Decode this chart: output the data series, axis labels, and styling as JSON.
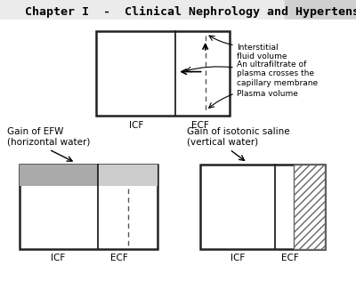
{
  "title": "Chapter I  -  Clinical Nephrology and Hypertension",
  "title_fontsize": 9.5,
  "title_fontweight": "bold",
  "title_fontfamily": "monospace",
  "bg_color": "#ebebeb",
  "main_bg": "#ffffff",
  "annotations": {
    "interstitial": "Interstitial\nfluid volume",
    "ultrafiltrate": "An ultrafiltrate of\nplasma crosses the\ncapillary membrane",
    "plasma": "Plasma volume",
    "gain_efw": "Gain of EFW\n(horizontal water)",
    "gain_iso": "Gain of isotonic saline\n(vertical water)"
  },
  "labels": {
    "icf_top": "ICF",
    "ecf_top": "ECF",
    "icf_bl": "ICF",
    "ecf_bl": "ECF",
    "icf_br": "ICF",
    "ecf_br": "ECF"
  },
  "gray_dark": "#aaaaaa",
  "gray_light": "#cccccc",
  "hatch_pattern": "////",
  "dashed_color": "#555555",
  "line_color": "#222222"
}
